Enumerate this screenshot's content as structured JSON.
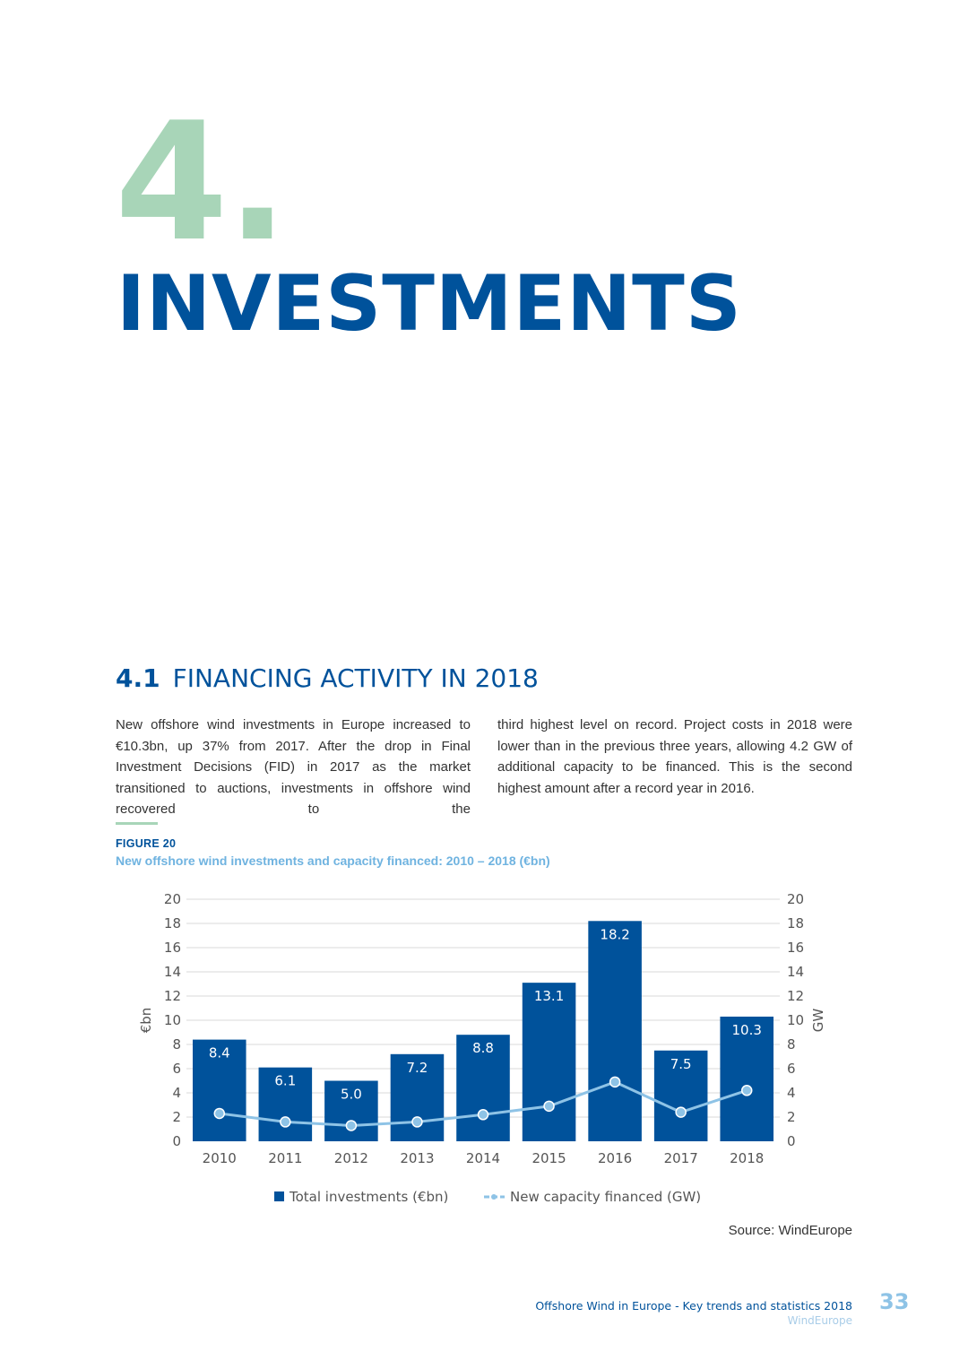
{
  "chapter": {
    "number": "4.",
    "title": "INVESTMENTS"
  },
  "section": {
    "number": "4.1",
    "title": "FINANCING ACTIVITY IN 2018"
  },
  "body": {
    "left_paragraph": "New offshore wind investments in Europe increased to €10.3bn, up 37% from 2017. After the drop in Final Investment Decisions (FID) in 2017 as the market transitioned to auctions, investments in offshore wind recovered to the",
    "right_paragraph": "third highest level on record. Project costs in 2018 were lower than in the previous three years, allowing 4.2 GW of additional capacity to be financed. This is the second highest amount after a record year in 2016."
  },
  "figure": {
    "label": "FIGURE 20",
    "caption": "New offshore wind investments and capacity financed: 2010 – 2018 (€bn)"
  },
  "chart_data": {
    "type": "bar",
    "categories": [
      "2010",
      "2011",
      "2012",
      "2013",
      "2014",
      "2015",
      "2016",
      "2017",
      "2018"
    ],
    "series": [
      {
        "name": "Total investments (€bn)",
        "type": "bar",
        "axis": "left",
        "values": [
          8.4,
          6.1,
          5.0,
          7.2,
          8.8,
          13.1,
          18.2,
          7.5,
          10.3
        ],
        "labels": [
          "8.4",
          "6.1",
          "5.0",
          "7.2",
          "8.8",
          "13.1",
          "18.2",
          "7.5",
          "10.3"
        ]
      },
      {
        "name": "New capacity financed (GW)",
        "type": "line",
        "axis": "right",
        "values": [
          2.3,
          1.6,
          1.3,
          1.6,
          2.2,
          2.9,
          4.9,
          2.4,
          4.2
        ]
      }
    ],
    "ylabel": "€bn",
    "y2label": "GW",
    "ylim": [
      0,
      20
    ],
    "y2lim": [
      0,
      20
    ],
    "yticks": [
      "0",
      "2",
      "4",
      "6",
      "8",
      "10",
      "12",
      "14",
      "16",
      "18",
      "20"
    ],
    "grid": true,
    "legend": "bottom-center",
    "colors": {
      "bar": "#00529b",
      "line": "#8ec3e6",
      "grid": "#d9d9d9",
      "tick_text": "#555555"
    }
  },
  "source": "Source: WindEurope",
  "footer": {
    "title": "Offshore Wind in Europe - Key trends and statistics 2018",
    "org": "WindEurope",
    "page": "33"
  }
}
